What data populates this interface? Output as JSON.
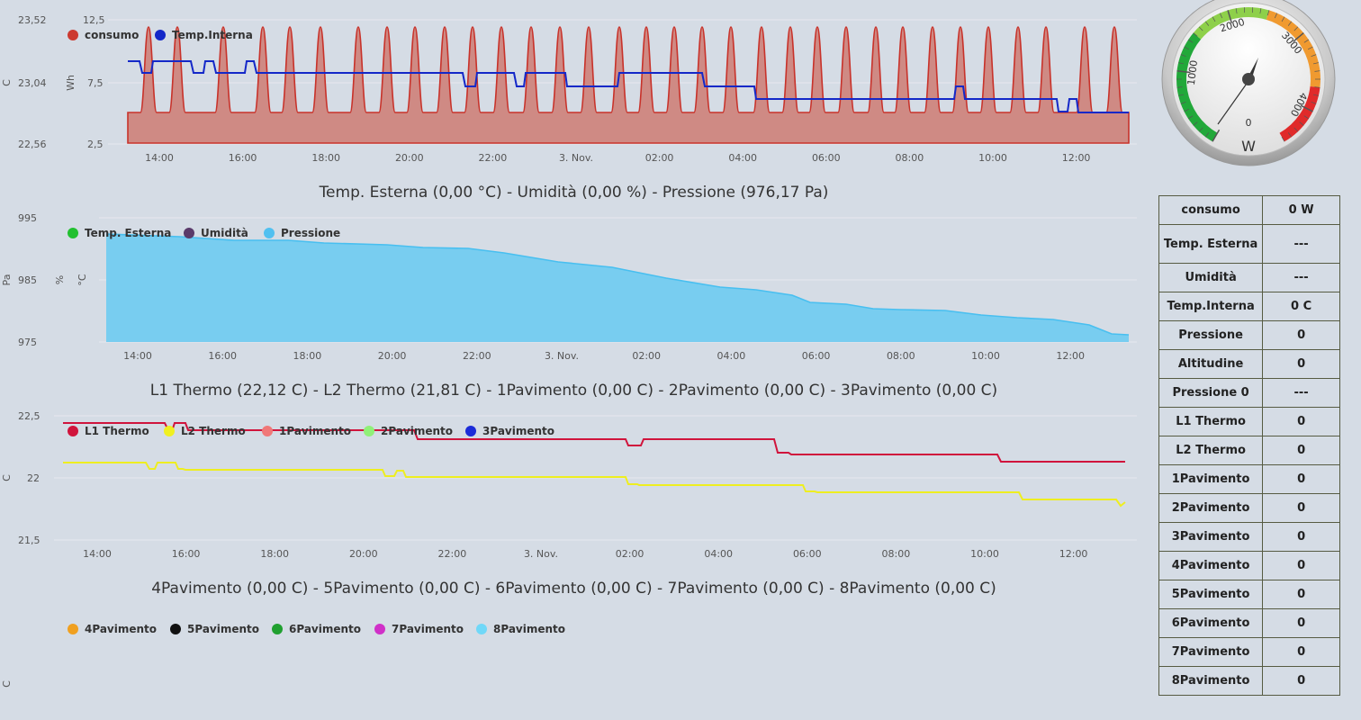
{
  "charts": [
    {
      "id": "chart1",
      "title": "",
      "unit_labels": [
        "C",
        "Wh"
      ],
      "y_ticks_left": [
        "23,52",
        "23,04",
        "22,56"
      ],
      "y_ticks_right": [
        "12,5",
        "7,5",
        "2,5"
      ],
      "x_ticks": [
        "14:00",
        "16:00",
        "18:00",
        "20:00",
        "22:00",
        "3. Nov.",
        "02:00",
        "04:00",
        "06:00",
        "08:00",
        "10:00",
        "12:00"
      ],
      "legend": [
        {
          "name": "consumo",
          "color": "#cc3a30"
        },
        {
          "name": "Temp.Interna",
          "color": "#1428c8"
        }
      ]
    },
    {
      "id": "chart2",
      "title": "Temp. Esterna (0,00 °C) - Umidità (0,00 %) - Pressione (976,17 Pa)",
      "unit_labels": [
        "Pa",
        "%",
        "°C"
      ],
      "y_ticks_left": [
        "995",
        "985",
        "975"
      ],
      "x_ticks": [
        "14:00",
        "16:00",
        "18:00",
        "20:00",
        "22:00",
        "3. Nov.",
        "02:00",
        "04:00",
        "06:00",
        "08:00",
        "10:00",
        "12:00"
      ],
      "legend": [
        {
          "name": "Temp. Esterna",
          "color": "#22c030"
        },
        {
          "name": "Umidità",
          "color": "#5a3a6a"
        },
        {
          "name": "Pressione",
          "color": "#50c0f0"
        }
      ]
    },
    {
      "id": "chart3",
      "title": "L1 Thermo (22,12 C) - L2 Thermo (21,81 C) - 1Pavimento (0,00 C) - 2Pavimento (0,00 C) - 3Pavimento (0,00 C)",
      "unit_labels": [
        "C"
      ],
      "y_ticks_left": [
        "22,5",
        "22",
        "21,5"
      ],
      "x_ticks": [
        "14:00",
        "16:00",
        "18:00",
        "20:00",
        "22:00",
        "3. Nov.",
        "02:00",
        "04:00",
        "06:00",
        "08:00",
        "10:00",
        "12:00"
      ],
      "legend": [
        {
          "name": "L1 Thermo",
          "color": "#d0143c"
        },
        {
          "name": "L2 Thermo",
          "color": "#f0f020"
        },
        {
          "name": "1Pavimento",
          "color": "#f07878"
        },
        {
          "name": "2Pavimento",
          "color": "#90f078"
        },
        {
          "name": "3Pavimento",
          "color": "#1c2cd8"
        }
      ]
    },
    {
      "id": "chart4",
      "title": "4Pavimento (0,00 C) - 5Pavimento (0,00 C) - 6Pavimento (0,00 C) - 7Pavimento (0,00 C) - 8Pavimento (0,00 C)",
      "unit_labels": [
        "C"
      ],
      "legend": [
        {
          "name": "4Pavimento",
          "color": "#f0a020"
        },
        {
          "name": "5Pavimento",
          "color": "#111111"
        },
        {
          "name": "6Pavimento",
          "color": "#20a030"
        },
        {
          "name": "7Pavimento",
          "color": "#d030c8"
        },
        {
          "name": "8Pavimento",
          "color": "#70d8f8"
        }
      ]
    }
  ],
  "gauge": {
    "unit": "W",
    "value": 0,
    "labels": [
      "0",
      "1000",
      "2000",
      "3000",
      "4000"
    ],
    "colors": {
      "low": "#22a83a",
      "mid": "#8ed04a",
      "high": "#f09a30",
      "max": "#e02a2a"
    }
  },
  "table": {
    "rows": [
      {
        "label": "consumo",
        "value": "0 W"
      },
      {
        "label": "Temp. Esterna",
        "value": "---"
      },
      {
        "label": "Umidità",
        "value": "---"
      },
      {
        "label": "Temp.Interna",
        "value": "0 C"
      },
      {
        "label": "Pressione",
        "value": "0"
      },
      {
        "label": "Altitudine",
        "value": "0"
      },
      {
        "label": "Pressione 0",
        "value": "---"
      },
      {
        "label": "L1 Thermo",
        "value": "0"
      },
      {
        "label": "L2 Thermo",
        "value": "0"
      },
      {
        "label": "1Pavimento",
        "value": "0"
      },
      {
        "label": "2Pavimento",
        "value": "0"
      },
      {
        "label": "3Pavimento",
        "value": "0"
      },
      {
        "label": "4Pavimento",
        "value": "0"
      },
      {
        "label": "5Pavimento",
        "value": "0"
      },
      {
        "label": "6Pavimento",
        "value": "0"
      },
      {
        "label": "7Pavimento",
        "value": "0"
      },
      {
        "label": "8Pavimento",
        "value": "0"
      }
    ]
  }
}
